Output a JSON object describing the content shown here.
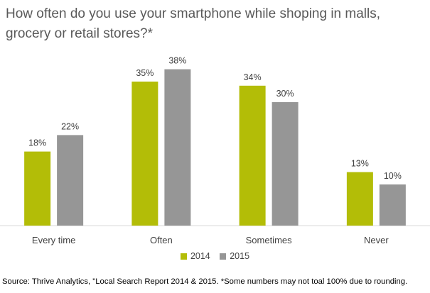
{
  "chart_data": {
    "type": "bar",
    "title": "How often do you use your smartphone while shoping in malls, grocery or retail stores?*",
    "categories": [
      "Every time",
      "Often",
      "Sometimes",
      "Never"
    ],
    "series": [
      {
        "name": "2014",
        "values": [
          18,
          35,
          34,
          13
        ],
        "labels": [
          "18%",
          "35%",
          "34%",
          "13%"
        ],
        "color": "#b3bd07"
      },
      {
        "name": "2015",
        "values": [
          22,
          38,
          30,
          10
        ],
        "labels": [
          "22%",
          "38%",
          "30%",
          "10%"
        ],
        "color": "#969696"
      }
    ],
    "xlabel": "",
    "ylabel": "",
    "ylim": [
      0,
      40
    ],
    "grid": false,
    "legend_position": "bottom",
    "source": "Source: Thrive Analytics, \"Local Search Report 2014 & 2015. *Some numbers may not toal 100% due to rounding."
  }
}
